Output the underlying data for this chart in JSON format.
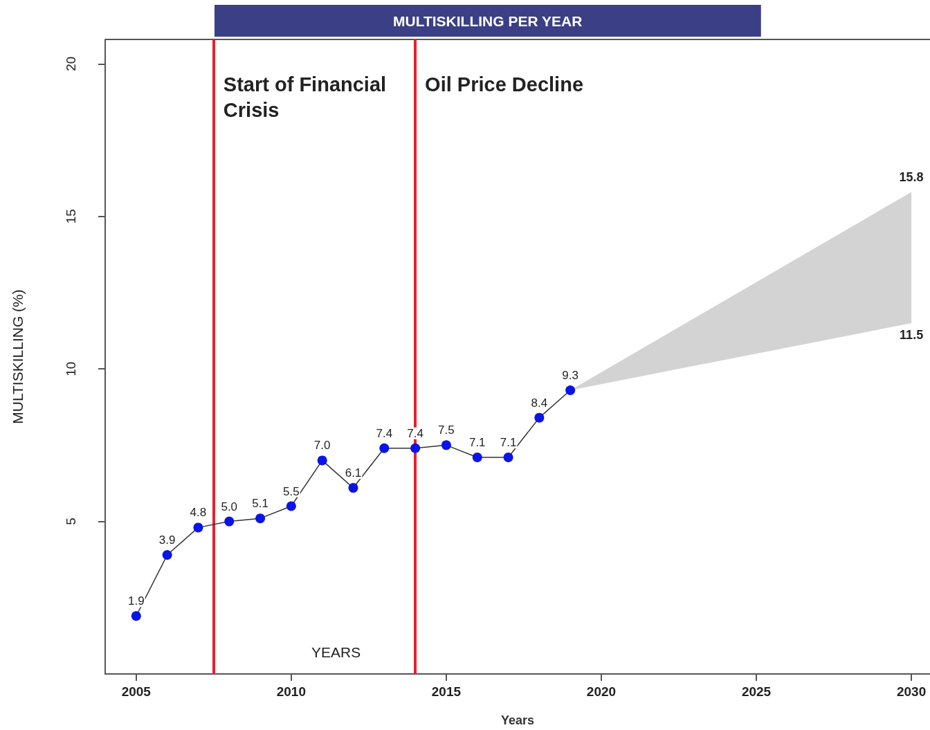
{
  "chart_data": {
    "type": "line",
    "title": "MULTISKILLING PER YEAR",
    "xlabel": "Years",
    "ylabel": "MULTISKILLING (%)",
    "x": [
      2005,
      2006,
      2007,
      2008,
      2009,
      2010,
      2011,
      2012,
      2013,
      2014,
      2015,
      2016,
      2017,
      2018,
      2019
    ],
    "series": [
      {
        "color": "#0a14e6",
        "values": [
          1.9,
          3.9,
          4.8,
          5.0,
          5.1,
          5.5,
          7.0,
          6.1,
          7.4,
          7.4,
          7.5,
          7.1,
          7.1,
          8.4,
          9.3
        ],
        "value_labels": [
          "1.9",
          "3.9",
          "4.8",
          "5.0",
          "5.1",
          "5.5",
          "7.0",
          "6.1",
          "7.4",
          "7.4",
          "7.5",
          "7.1",
          "7.1",
          "8.4",
          "9.3"
        ]
      },
      {
        "type": "area",
        "color": "#d3d3d3",
        "x": [
          2019,
          2030
        ],
        "values": [
          null,
          null
        ],
        "lower": [
          9.3,
          11.5
        ],
        "upper": [
          9.3,
          15.8
        ]
      }
    ],
    "marker": "circle",
    "grid": false,
    "xlim": [
      2004,
      2030.6
    ],
    "xticks": [
      2005,
      2010,
      2015,
      2020,
      2025,
      2030
    ],
    "ylim": [
      0,
      20.8
    ],
    "yticks": [
      5,
      10,
      15,
      20
    ],
    "ref_lines": [
      {
        "axis": "x",
        "value": 2007.5,
        "label": "Start of Financial Crisis",
        "color": "#e8202a"
      },
      {
        "axis": "x",
        "value": 2014,
        "label": "Oil Price Decline",
        "color": "#e8202a"
      }
    ],
    "annotations": [
      "YEARS",
      {
        "text": "15.8",
        "x": 2030,
        "y": 15.8
      },
      {
        "text": "11.5",
        "x": 2030,
        "y": 11.5
      }
    ]
  }
}
